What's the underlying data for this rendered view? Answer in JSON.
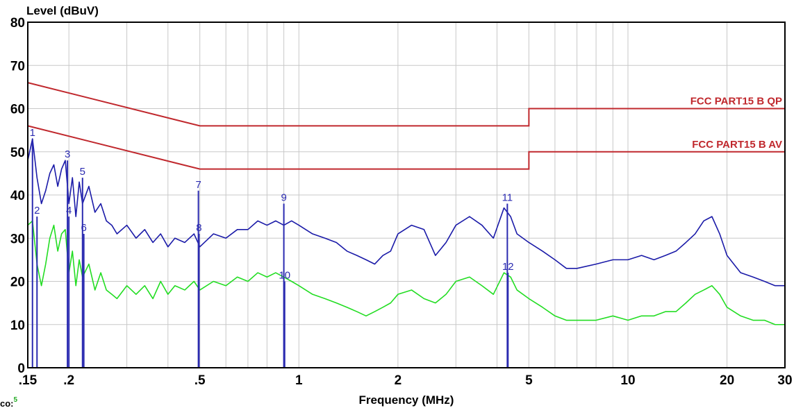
{
  "chart_data": {
    "type": "line",
    "ylabel": "Level (dBuV)",
    "xlabel": "Frequency (MHz)",
    "x_scale": "log",
    "xlim": [
      0.15,
      30
    ],
    "ylim": [
      0,
      80
    ],
    "grid": true,
    "x_tick_labels": [
      ".15",
      ".2",
      ".5",
      "1",
      "2",
      "5",
      "10",
      "20",
      "30"
    ],
    "x_tick_values": [
      0.15,
      0.2,
      0.5,
      1,
      2,
      5,
      10,
      20,
      30
    ],
    "y_tick_labels": [
      "0",
      "10",
      "20",
      "30",
      "40",
      "50",
      "60",
      "70",
      "80"
    ],
    "y_tick_values": [
      0,
      10,
      20,
      30,
      40,
      50,
      60,
      70,
      80
    ],
    "limits": [
      {
        "name": "FCC PART15 B QP",
        "color": "#c0282d",
        "x": [
          0.15,
          0.5,
          5,
          5,
          30
        ],
        "y": [
          66,
          56,
          56,
          60,
          60
        ]
      },
      {
        "name": "FCC PART15 B  AV",
        "color": "#c0282d",
        "x": [
          0.15,
          0.5,
          5,
          5,
          30
        ],
        "y": [
          56,
          46,
          46,
          50,
          50
        ]
      }
    ],
    "series": [
      {
        "color": "#1a1aa8",
        "x": [
          0.15,
          0.155,
          0.16,
          0.165,
          0.17,
          0.175,
          0.18,
          0.185,
          0.19,
          0.195,
          0.2,
          0.205,
          0.21,
          0.215,
          0.22,
          0.23,
          0.24,
          0.25,
          0.26,
          0.27,
          0.28,
          0.3,
          0.32,
          0.34,
          0.36,
          0.38,
          0.4,
          0.42,
          0.45,
          0.48,
          0.5,
          0.55,
          0.6,
          0.65,
          0.7,
          0.75,
          0.8,
          0.85,
          0.9,
          0.95,
          1.0,
          1.1,
          1.2,
          1.3,
          1.4,
          1.5,
          1.6,
          1.7,
          1.8,
          1.9,
          2.0,
          2.2,
          2.4,
          2.6,
          2.8,
          3.0,
          3.3,
          3.6,
          3.9,
          4.2,
          4.4,
          4.6,
          5.0,
          5.5,
          6.0,
          6.5,
          7.0,
          8.0,
          9.0,
          10,
          11,
          12,
          13,
          14,
          15,
          16,
          17,
          18,
          19,
          20,
          22,
          24,
          26,
          28,
          30
        ],
        "y": [
          48,
          53,
          44,
          38,
          41,
          45,
          47,
          42,
          46,
          48,
          38,
          44,
          35,
          43,
          38,
          42,
          36,
          38,
          34,
          33,
          31,
          33,
          30,
          32,
          29,
          31,
          28,
          30,
          29,
          31,
          28,
          31,
          30,
          32,
          32,
          34,
          33,
          34,
          33,
          34,
          33,
          31,
          30,
          29,
          27,
          26,
          25,
          24,
          26,
          27,
          31,
          33,
          32,
          26,
          29,
          33,
          35,
          33,
          30,
          37,
          35,
          31,
          29,
          27,
          25,
          23,
          23,
          24,
          25,
          25,
          26,
          25,
          26,
          27,
          29,
          31,
          34,
          35,
          31,
          26,
          22,
          21,
          20,
          19,
          19
        ]
      },
      {
        "color": "#22dd22",
        "x": [
          0.15,
          0.155,
          0.16,
          0.165,
          0.17,
          0.175,
          0.18,
          0.185,
          0.19,
          0.195,
          0.2,
          0.205,
          0.21,
          0.215,
          0.22,
          0.23,
          0.24,
          0.25,
          0.26,
          0.27,
          0.28,
          0.3,
          0.32,
          0.34,
          0.36,
          0.38,
          0.4,
          0.42,
          0.45,
          0.48,
          0.5,
          0.55,
          0.6,
          0.65,
          0.7,
          0.75,
          0.8,
          0.85,
          0.9,
          0.95,
          1.0,
          1.1,
          1.2,
          1.3,
          1.4,
          1.5,
          1.6,
          1.7,
          1.8,
          1.9,
          2.0,
          2.2,
          2.4,
          2.6,
          2.8,
          3.0,
          3.3,
          3.6,
          3.9,
          4.2,
          4.4,
          4.6,
          5.0,
          5.5,
          6.0,
          6.5,
          7.0,
          8.0,
          9.0,
          10,
          11,
          12,
          13,
          14,
          15,
          16,
          17,
          18,
          19,
          20,
          22,
          24,
          26,
          28,
          30
        ],
        "y": [
          33,
          34,
          24,
          19,
          24,
          30,
          33,
          27,
          31,
          32,
          22,
          27,
          19,
          25,
          21,
          24,
          18,
          22,
          18,
          17,
          16,
          19,
          17,
          19,
          16,
          20,
          17,
          19,
          18,
          20,
          18,
          20,
          19,
          21,
          20,
          22,
          21,
          22,
          21,
          20,
          19,
          17,
          16,
          15,
          14,
          13,
          12,
          13,
          14,
          15,
          17,
          18,
          16,
          15,
          17,
          20,
          21,
          19,
          17,
          22,
          21,
          18,
          16,
          14,
          12,
          11,
          11,
          11,
          12,
          11,
          12,
          12,
          13,
          13,
          15,
          17,
          18,
          19,
          17,
          14,
          12,
          11,
          11,
          10,
          10
        ]
      }
    ],
    "markers": [
      {
        "label": "1",
        "x": 0.155,
        "y": 53
      },
      {
        "label": "2",
        "x": 0.16,
        "y": 35
      },
      {
        "label": "3",
        "x": 0.198,
        "y": 48
      },
      {
        "label": "4",
        "x": 0.2,
        "y": 35
      },
      {
        "label": "5",
        "x": 0.22,
        "y": 44
      },
      {
        "label": "6",
        "x": 0.222,
        "y": 31
      },
      {
        "label": "7",
        "x": 0.495,
        "y": 41
      },
      {
        "label": "8",
        "x": 0.497,
        "y": 31
      },
      {
        "label": "9",
        "x": 0.9,
        "y": 38
      },
      {
        "label": "10",
        "x": 0.905,
        "y": 20
      },
      {
        "label": "11",
        "x": 4.3,
        "y": 38
      },
      {
        "label": "12",
        "x": 4.32,
        "y": 22
      }
    ]
  },
  "footer": {
    "text": "co:",
    "superscript": "5"
  }
}
